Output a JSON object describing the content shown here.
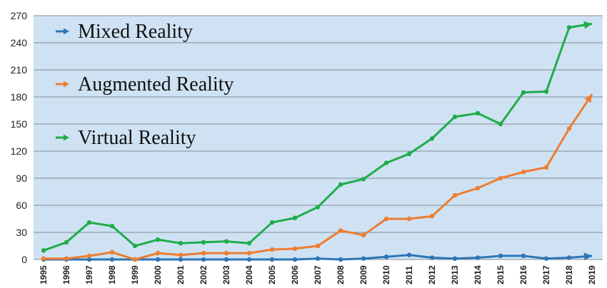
{
  "chart_data": {
    "type": "line",
    "x": [
      1995,
      1996,
      1997,
      1998,
      1999,
      2000,
      2001,
      2002,
      2003,
      2004,
      2005,
      2006,
      2007,
      2008,
      2009,
      2010,
      2011,
      2012,
      2013,
      2014,
      2015,
      2016,
      2017,
      2018,
      2019
    ],
    "x_tick_labels": [
      "1995",
      "1996",
      "1997",
      "1998",
      "1999",
      "2000",
      "2001",
      "2002",
      "2003",
      "2004",
      "2005",
      "2006",
      "2007",
      "2008",
      "2009",
      "2010",
      "2011",
      "2012",
      "2013",
      "2014",
      "2015",
      "2016",
      "2017",
      "2018",
      "2019"
    ],
    "ylim": [
      0,
      270
    ],
    "y_ticks": [
      0,
      30,
      60,
      90,
      120,
      150,
      180,
      210,
      240,
      270
    ],
    "y_tick_labels": [
      "0",
      "30",
      "60",
      "90",
      "120",
      "150",
      "180",
      "210",
      "240",
      "270"
    ],
    "grid": true,
    "legend_position": "top-left",
    "series": [
      {
        "name": "Mixed Reality",
        "color": "#2E75B6",
        "values": [
          0,
          0,
          0,
          0,
          0,
          0,
          0,
          0,
          0,
          0,
          0,
          0,
          1,
          0,
          1,
          3,
          5,
          2,
          1,
          2,
          4,
          4,
          1,
          2,
          4
        ]
      },
      {
        "name": "Augmented Reality",
        "color": "#ED7D31",
        "values": [
          1,
          1,
          4,
          8,
          0,
          7,
          5,
          7,
          7,
          7,
          11,
          12,
          15,
          32,
          27,
          45,
          45,
          48,
          71,
          79,
          90,
          97,
          102,
          145,
          183
        ]
      },
      {
        "name": "Virtual Reality",
        "color": "#1FAD4B",
        "values": [
          10,
          19,
          41,
          37,
          15,
          22,
          18,
          19,
          20,
          18,
          41,
          46,
          58,
          83,
          89,
          107,
          117,
          134,
          158,
          162,
          150,
          185,
          186,
          257,
          261
        ]
      }
    ],
    "background_color": "#CFE2F3",
    "grid_color": "#7F8C99"
  }
}
